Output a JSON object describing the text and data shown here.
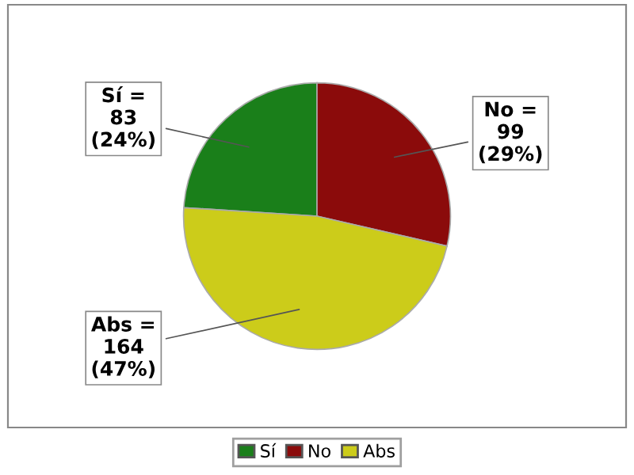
{
  "chart_data": {
    "type": "pie",
    "categories": [
      "Sí",
      "No",
      "Abs"
    ],
    "values": [
      83,
      99,
      164
    ],
    "colors": [
      "#1a7f1a",
      "#8b0b0b",
      "#cccc1a"
    ],
    "value_labels": [
      "Sí =\n83\n(24%)",
      "No =\n99\n(29%)",
      "Abs =\n164\n(47%)"
    ],
    "legend": "bottom"
  }
}
